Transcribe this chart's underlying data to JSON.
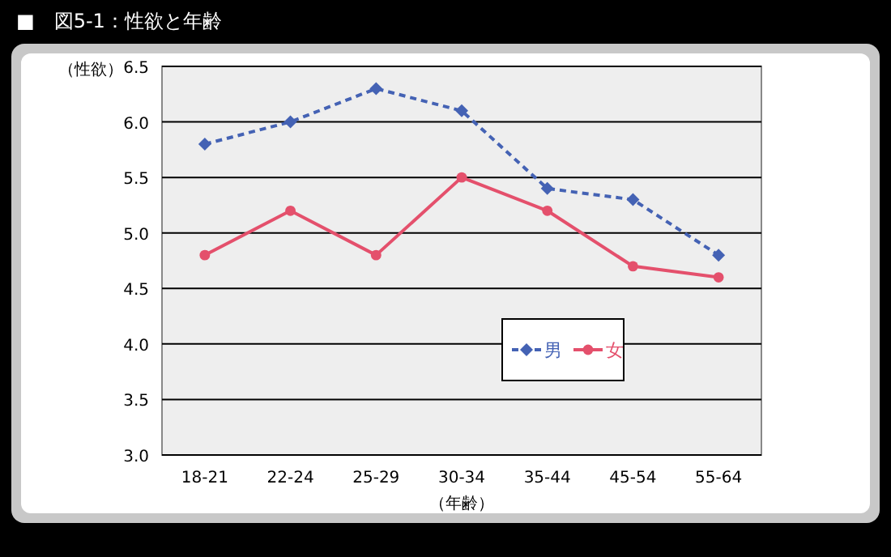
{
  "chart_data": {
    "type": "line",
    "title": "■　図5-1：性欲と年齢",
    "ylabel": "（性欲）",
    "xlabel": "（年齢）",
    "categories": [
      "18-21",
      "22-24",
      "25-29",
      "30-34",
      "35-44",
      "45-54",
      "55-64"
    ],
    "series": [
      {
        "name": "男",
        "color": "#4462b4",
        "values": [
          5.8,
          6.0,
          6.3,
          6.1,
          5.4,
          5.3,
          4.8
        ],
        "marker": "diamond",
        "line_style": "dashed"
      },
      {
        "name": "女",
        "color": "#e4506c",
        "values": [
          4.8,
          5.2,
          4.8,
          5.5,
          5.2,
          4.7,
          4.6
        ],
        "marker": "circle",
        "line_style": "solid"
      }
    ],
    "ylim": [
      3.0,
      6.5
    ],
    "yticks": [
      {
        "value": 3.0,
        "label": "3.0"
      },
      {
        "value": 3.5,
        "label": "3.5"
      },
      {
        "value": 4.0,
        "label": "4.0"
      },
      {
        "value": 4.5,
        "label": "4.5"
      },
      {
        "value": 5.0,
        "label": "5.0"
      },
      {
        "value": 5.5,
        "label": "5.5"
      },
      {
        "value": 6.0,
        "label": "6.0"
      },
      {
        "value": 6.5,
        "label": "6.5"
      }
    ],
    "grid": "y",
    "legend": "bottom right"
  }
}
